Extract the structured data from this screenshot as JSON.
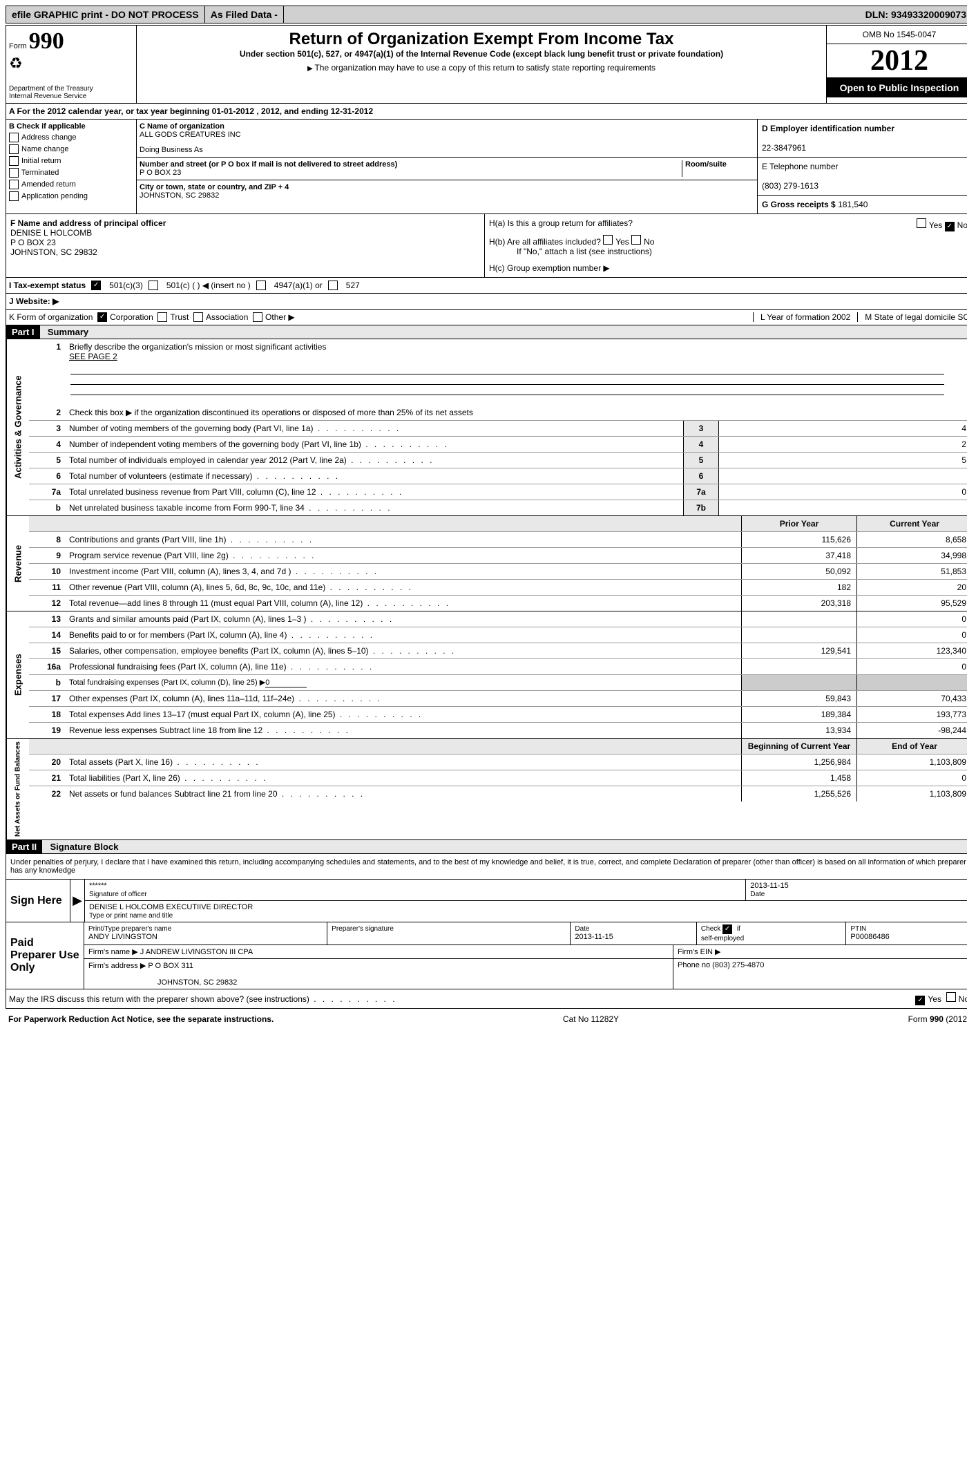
{
  "colors": {
    "black": "#000000",
    "white": "#ffffff",
    "header_gray": "#d0d0d0",
    "light_gray": "#e8e8e8",
    "shade_gray": "#cccccc"
  },
  "top_bar": {
    "efile": "efile GRAPHIC print - DO NOT PROCESS",
    "as_filed": "As Filed Data -",
    "dln_label": "DLN:",
    "dln": "93493320009073"
  },
  "header": {
    "form_label": "Form",
    "form_number": "990",
    "recycle_icon": "♻",
    "dept": "Department of the Treasury",
    "irs": "Internal Revenue Service",
    "title": "Return of Organization Exempt From Income Tax",
    "subtitle": "Under section 501(c), 527, or 4947(a)(1) of the Internal Revenue Code (except black lung benefit trust or private foundation)",
    "note": "The organization may have to use a copy of this return to satisfy state reporting requirements",
    "omb": "OMB No 1545-0047",
    "year": "2012",
    "inspection": "Open to Public Inspection"
  },
  "row_a": "A For the 2012 calendar year, or tax year beginning 01-01-2012   , 2012, and ending 12-31-2012",
  "section_b": {
    "label": "B Check if applicable",
    "items": [
      "Address change",
      "Name change",
      "Initial return",
      "Terminated",
      "Amended return",
      "Application pending"
    ]
  },
  "section_c": {
    "name_label": "C Name of organization",
    "name": "ALL GODS CREATURES INC",
    "dba_label": "Doing Business As",
    "dba": "",
    "street_label": "Number and street (or P O  box if mail is not delivered to street address)",
    "room_label": "Room/suite",
    "street": "P O BOX 23",
    "city_label": "City or town, state or country, and ZIP + 4",
    "city": "JOHNSTON, SC  29832"
  },
  "section_d": {
    "label": "D Employer identification number",
    "value": "22-3847961"
  },
  "section_e": {
    "label": "E Telephone number",
    "value": "(803) 279-1613"
  },
  "section_g": {
    "label": "G Gross receipts $",
    "value": "181,540"
  },
  "section_f": {
    "label": "F   Name and address of principal officer",
    "name": "DENISE L HOLCOMB",
    "street": "P O BOX 23",
    "city": "JOHNSTON, SC  29832"
  },
  "section_h": {
    "ha": "H(a)  Is this a group return for affiliates?",
    "hb": "H(b)  Are all affiliates included?",
    "hb_note": "If \"No,\" attach a list  (see instructions)",
    "hc": "H(c)   Group exemption number ▶",
    "yes": "Yes",
    "no": "No"
  },
  "line_i": {
    "label": "I   Tax-exempt status",
    "opts": [
      "501(c)(3)",
      "501(c) (   ) ◀ (insert no )",
      "4947(a)(1) or",
      "527"
    ]
  },
  "line_j": "J  Website: ▶",
  "line_k": {
    "left": "K Form of organization",
    "opts": [
      "Corporation",
      "Trust",
      "Association",
      "Other ▶"
    ],
    "year_label": "L Year of formation  2002",
    "state_label": "M State of legal domicile  SC"
  },
  "part1": {
    "header": "Part I",
    "title": "Summary",
    "side_label_1": "Activities & Governance",
    "line1": "Briefly describe the organization's mission or most significant activities",
    "mission": "SEE PAGE 2",
    "line2": "Check this box ▶     if the organization discontinued its operations or disposed of more than 25% of its net assets",
    "rows_gov": [
      {
        "n": "3",
        "d": "Number of voting members of the governing body (Part VI, line 1a)",
        "box": "3",
        "v": "4"
      },
      {
        "n": "4",
        "d": "Number of independent voting members of the governing body (Part VI, line 1b)",
        "box": "4",
        "v": "2"
      },
      {
        "n": "5",
        "d": "Total number of individuals employed in calendar year 2012 (Part V, line 2a)",
        "box": "5",
        "v": "5"
      },
      {
        "n": "6",
        "d": "Total number of volunteers (estimate if necessary)",
        "box": "6",
        "v": ""
      },
      {
        "n": "7a",
        "d": "Total unrelated business revenue from Part VIII, column (C), line 12",
        "box": "7a",
        "v": "0"
      },
      {
        "n": "b",
        "d": "Net unrelated business taxable income from Form 990-T, line 34",
        "box": "7b",
        "v": ""
      }
    ],
    "col_prior": "Prior Year",
    "col_current": "Current Year",
    "side_label_2": "Revenue",
    "rows_rev": [
      {
        "n": "8",
        "d": "Contributions and grants (Part VIII, line 1h)",
        "p": "115,626",
        "c": "8,658"
      },
      {
        "n": "9",
        "d": "Program service revenue (Part VIII, line 2g)",
        "p": "37,418",
        "c": "34,998"
      },
      {
        "n": "10",
        "d": "Investment income (Part VIII, column (A), lines 3, 4, and 7d )",
        "p": "50,092",
        "c": "51,853"
      },
      {
        "n": "11",
        "d": "Other revenue (Part VIII, column (A), lines 5, 6d, 8c, 9c, 10c, and 11e)",
        "p": "182",
        "c": "20"
      },
      {
        "n": "12",
        "d": "Total revenue—add lines 8 through 11 (must equal Part VIII, column (A), line 12)",
        "p": "203,318",
        "c": "95,529"
      }
    ],
    "side_label_3": "Expenses",
    "rows_exp": [
      {
        "n": "13",
        "d": "Grants and similar amounts paid (Part IX, column (A), lines 1–3 )",
        "p": "",
        "c": "0"
      },
      {
        "n": "14",
        "d": "Benefits paid to or for members (Part IX, column (A), line 4)",
        "p": "",
        "c": "0"
      },
      {
        "n": "15",
        "d": "Salaries, other compensation, employee benefits (Part IX, column (A), lines 5–10)",
        "p": "129,541",
        "c": "123,340"
      },
      {
        "n": "16a",
        "d": "Professional fundraising fees (Part IX, column (A), line 11e)",
        "p": "",
        "c": "0"
      },
      {
        "n": "b",
        "d": "Total fundraising expenses (Part IX, column (D), line 25) ▶",
        "p": "gray",
        "c": "gray",
        "fund_val": "0"
      },
      {
        "n": "17",
        "d": "Other expenses (Part IX, column (A), lines 11a–11d, 11f–24e)",
        "p": "59,843",
        "c": "70,433"
      },
      {
        "n": "18",
        "d": "Total expenses  Add lines 13–17 (must equal Part IX, column (A), line 25)",
        "p": "189,384",
        "c": "193,773"
      },
      {
        "n": "19",
        "d": "Revenue less expenses  Subtract line 18 from line 12",
        "p": "13,934",
        "c": "-98,244"
      }
    ],
    "col_begin": "Beginning of Current Year",
    "col_end": "End of Year",
    "side_label_4": "Net Assets or Fund Balances",
    "rows_net": [
      {
        "n": "20",
        "d": "Total assets (Part X, line 16)",
        "p": "1,256,984",
        "c": "1,103,809"
      },
      {
        "n": "21",
        "d": "Total liabilities (Part X, line 26)",
        "p": "1,458",
        "c": "0"
      },
      {
        "n": "22",
        "d": "Net assets or fund balances  Subtract line 21 from line 20",
        "p": "1,255,526",
        "c": "1,103,809"
      }
    ]
  },
  "part2": {
    "header": "Part II",
    "title": "Signature Block",
    "declaration": "Under penalties of perjury, I declare that I have examined this return, including accompanying schedules and statements, and to the best of my knowledge and belief, it is true, correct, and complete  Declaration of preparer (other than officer) is based on all information of which preparer has any knowledge",
    "sign_here": "Sign Here",
    "sig_stars": "******",
    "sig_officer_label": "Signature of officer",
    "sig_date": "2013-11-15",
    "sig_date_label": "Date",
    "officer_name": "DENISE L HOLCOMB EXECUTIIVE DIRECTOR",
    "officer_name_label": "Type or print name and title",
    "paid": "Paid Preparer Use Only",
    "prep_name_label": "Print/Type preparer's name",
    "prep_name": "ANDY LIVINGSTON",
    "prep_sig_label": "Preparer's signature",
    "prep_date_label": "Date",
    "prep_date": "2013-11-15",
    "self_emp_label": "Check        if self-employed",
    "ptin_label": "PTIN",
    "ptin": "P00086486",
    "firm_name_label": "Firm's name      ▶",
    "firm_name": "J ANDREW LIVINGSTON III CPA",
    "firm_ein_label": "Firm's EIN ▶",
    "firm_addr_label": "Firm's address ▶",
    "firm_addr1": "P O BOX 311",
    "firm_addr2": "JOHNSTON, SC  29832",
    "phone_label": "Phone no",
    "phone": "(803) 275-4870",
    "discuss": "May the IRS discuss this return with the preparer shown above? (see instructions)",
    "yes": "Yes",
    "no": "No"
  },
  "footer": {
    "left": "For Paperwork Reduction Act Notice, see the separate instructions.",
    "center": "Cat No 11282Y",
    "right": "Form 990 (2012)"
  }
}
